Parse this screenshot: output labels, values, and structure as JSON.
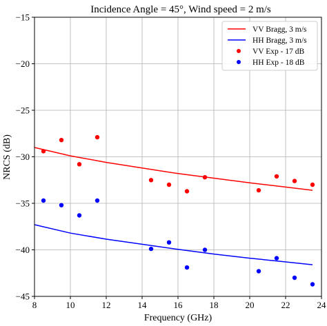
{
  "chart_data": {
    "type": "scatter",
    "title": "Incidence Angle = 45°, Wind speed = 2 m/s",
    "xlabel": "Frequency (GHz)",
    "ylabel": "NRCS (dB)",
    "xlim": [
      8,
      24
    ],
    "ylim": [
      -45,
      -15
    ],
    "xticks": [
      8,
      10,
      12,
      14,
      16,
      18,
      20,
      22,
      24
    ],
    "yticks": [
      -45,
      -40,
      -35,
      -30,
      -25,
      -20,
      -15
    ],
    "xtick_labels": [
      "8",
      "10",
      "12",
      "14",
      "16",
      "18",
      "20",
      "22",
      "24"
    ],
    "ytick_labels": [
      "−45",
      "−40",
      "−35",
      "−30",
      "−25",
      "−20",
      "−15"
    ],
    "grid": true,
    "legend_position": "top-right",
    "lines": [
      {
        "name": "VV Bragg, 3 m/s",
        "color": "#ff0000",
        "x": [
          8,
          10,
          12,
          14,
          16,
          18,
          20,
          22,
          23.5
        ],
        "y": [
          -29.0,
          -29.9,
          -30.6,
          -31.2,
          -31.8,
          -32.3,
          -32.8,
          -33.25,
          -33.6
        ]
      },
      {
        "name": "HH Bragg, 3 m/s",
        "color": "#0000ff",
        "x": [
          8,
          10,
          12,
          14,
          16,
          18,
          20,
          22,
          23.5
        ],
        "y": [
          -37.3,
          -38.2,
          -38.85,
          -39.4,
          -39.95,
          -40.45,
          -40.9,
          -41.3,
          -41.6
        ]
      }
    ],
    "points": [
      {
        "name": "VV Exp - 17 dB",
        "color": "#ff0000",
        "x": [
          8.5,
          9.5,
          10.5,
          11.5,
          14.5,
          15.5,
          16.5,
          17.5,
          20.5,
          21.5,
          22.5,
          23.5
        ],
        "y": [
          -29.4,
          -28.2,
          -30.8,
          -27.9,
          -32.5,
          -33.0,
          -33.7,
          -32.2,
          -33.6,
          -32.1,
          -32.6,
          -33.0
        ]
      },
      {
        "name": "HH Exp - 18 dB",
        "color": "#0000ff",
        "x": [
          8.5,
          9.5,
          10.5,
          11.5,
          14.5,
          15.5,
          16.5,
          17.5,
          20.5,
          21.5,
          22.5,
          23.5
        ],
        "y": [
          -34.7,
          -35.2,
          -36.3,
          -34.7,
          -39.9,
          -39.2,
          -41.9,
          -40.0,
          -42.3,
          -40.9,
          -43.0,
          -43.7
        ]
      }
    ]
  }
}
